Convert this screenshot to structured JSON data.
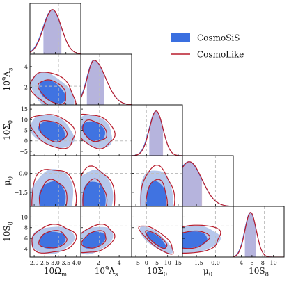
{
  "chart_data": {
    "type": "corner",
    "parameters": [
      {
        "key": "om",
        "label": "10Ω",
        "sub": "m",
        "sup": "",
        "range": [
          1.8,
          4.2
        ],
        "ticks": [
          2.0,
          2.5,
          3.0,
          3.5,
          4.0
        ],
        "tick_labels": [
          "2.0",
          "2.5",
          "3.0",
          "3.5",
          "4.0"
        ]
      },
      {
        "key": "as",
        "label": "10",
        "sup": "9",
        "label2": "A",
        "sub": "s",
        "range": [
          0.3,
          5.2
        ],
        "ticks": [
          2,
          4
        ],
        "tick_labels": [
          "2",
          "4"
        ]
      },
      {
        "key": "sig",
        "label": "10Σ",
        "sub": "0",
        "sup": "",
        "range": [
          -7,
          17
        ],
        "ticks": [
          -5,
          0,
          5,
          10,
          15
        ],
        "tick_labels": [
          "−5",
          "0",
          "5",
          "10",
          "15"
        ]
      },
      {
        "key": "mu",
        "label": "μ",
        "sub": "0",
        "sup": "",
        "range": [
          -2.6,
          1.4
        ],
        "ticks": [
          -1.5,
          0.0
        ],
        "tick_labels": [
          "−1.5",
          "0.0"
        ],
        "y_ticks": [
          -1.5,
          0.0
        ],
        "y_tick_labels": [
          "−1.5",
          "0.0"
        ]
      },
      {
        "key": "s8",
        "label": "10S",
        "sub": "8",
        "sup": "",
        "range": [
          2.5,
          12
        ],
        "ticks": [
          4,
          6,
          8,
          10
        ],
        "tick_labels": [
          "4",
          "6",
          "8",
          "10"
        ]
      }
    ],
    "y_ticks_left": {
      "as": {
        "ticks": [
          2,
          4
        ],
        "labels": [
          "2",
          "4"
        ]
      },
      "sig": {
        "ticks": [
          -5,
          0,
          5,
          10,
          15
        ],
        "labels": [
          "−5",
          "0",
          "5",
          "10",
          "15"
        ]
      },
      "mu": {
        "ticks": [
          -1.5,
          0.0
        ],
        "labels": [
          "−1.5",
          "0.0"
        ]
      },
      "s8": {
        "ticks": [
          4,
          6,
          8,
          10
        ],
        "labels": [
          "4",
          "6",
          "8",
          "10"
        ]
      }
    },
    "fiducial": {
      "om": 3.15,
      "as": 2.1,
      "sig": 0.0,
      "mu": 0.0,
      "s8": 8.3
    },
    "posteriors": {
      "om": {
        "mean": 2.85,
        "sd": 0.42
      },
      "as": {
        "mean": 1.55,
        "sd": 0.75,
        "skew": 1
      },
      "sig": {
        "mean": 4.5,
        "sd": 3.2
      },
      "mu": {
        "mean": -2.1,
        "sd": 1.0
      },
      "s8": {
        "mean": 5.7,
        "sd": 1.05
      }
    },
    "correlations": {
      "om-as": -0.45,
      "om-sig": -0.35,
      "om-mu": 0.05,
      "om-s8": 0.15,
      "as-sig": -0.3,
      "as-mu": 0.0,
      "as-s8": 0.35,
      "sig-mu": 0.0,
      "sig-s8": -0.8,
      "mu-s8": 0.2
    },
    "legend": {
      "position": "upper-right",
      "entries": [
        {
          "name": "CosmoSiS",
          "style": "filled",
          "color": "#3a6fe0"
        },
        {
          "name": "CosmoLike",
          "style": "line",
          "color": "#b81c2c"
        }
      ]
    },
    "colors": {
      "cosmosis_inner": "#3a6fe0",
      "cosmosis_outer": "#a9bde8",
      "cosmolike": "#b81c2c",
      "fiducial": "#bfbfbf",
      "pdf_fill_red": "#b9a4c4",
      "pdf_fill_blue": "#a6afe6",
      "pdf_fill_overlap": "#9d8fc0"
    }
  }
}
